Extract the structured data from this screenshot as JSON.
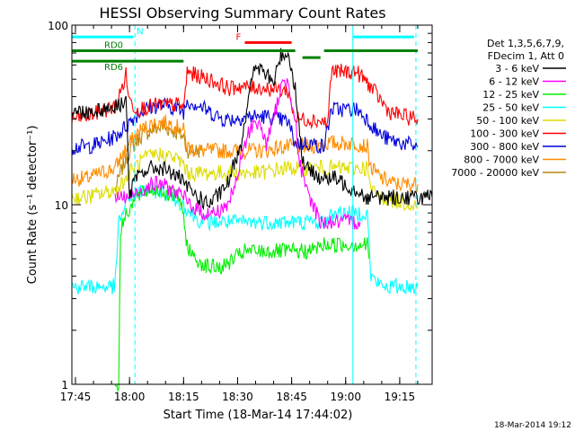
{
  "chart_data": {
    "type": "line",
    "title": "HESSI Observing Summary Count Rates",
    "xlabel": "Start Time (18-Mar-14 17:44:02)",
    "ylabel": "Count Rate (s⁻¹ detector⁻¹)",
    "x_unit": "minutes after 17:44:02",
    "xlim": [
      0,
      100
    ],
    "ylim": [
      1,
      100
    ],
    "yscale": "log",
    "grid": false,
    "legend_position": "right",
    "x_ticks": [
      {
        "label": "17:45",
        "x": 1
      },
      {
        "label": "18:00",
        "x": 16
      },
      {
        "label": "18:15",
        "x": 31
      },
      {
        "label": "18:30",
        "x": 46
      },
      {
        "label": "18:45",
        "x": 61
      },
      {
        "label": "19:00",
        "x": 76
      },
      {
        "label": "19:15",
        "x": 91
      }
    ],
    "y_ticks": [
      {
        "label": "1",
        "y": 1
      },
      {
        "label": "10",
        "y": 10
      },
      {
        "label": "100",
        "y": 100
      }
    ],
    "legend_header": [
      "Det 1,3,5,6,7,9,",
      "FDecim 1, Att 0"
    ],
    "series": [
      {
        "name": "3 - 6 keV",
        "color": "#000000",
        "points": [
          [
            0,
            33
          ],
          [
            4,
            33
          ],
          [
            8,
            34
          ],
          [
            12,
            35
          ],
          [
            14,
            37
          ],
          [
            15,
            39
          ],
          [
            16,
            11
          ],
          [
            17,
            13
          ],
          [
            19,
            15
          ],
          [
            22,
            16
          ],
          [
            25,
            16
          ],
          [
            28,
            15
          ],
          [
            30,
            14
          ],
          [
            31,
            13
          ],
          [
            33,
            12
          ],
          [
            35,
            11
          ],
          [
            38,
            10
          ],
          [
            42,
            12
          ],
          [
            44,
            14
          ],
          [
            45,
            17
          ],
          [
            47,
            22
          ],
          [
            49,
            40
          ],
          [
            51,
            60
          ],
          [
            53,
            55
          ],
          [
            56,
            48
          ],
          [
            58,
            68
          ],
          [
            60,
            70
          ],
          [
            62,
            45
          ],
          [
            63,
            28
          ],
          [
            64,
            18
          ],
          [
            65,
            16
          ],
          [
            67,
            15
          ],
          [
            70,
            14
          ],
          [
            73,
            14
          ],
          [
            76,
            13
          ],
          [
            79,
            12
          ],
          [
            80,
            12
          ],
          [
            81,
            11
          ],
          [
            84,
            11
          ],
          [
            90,
            11
          ],
          [
            100,
            11
          ]
        ]
      },
      {
        "name": "6 - 12 keV",
        "color": "#ff00ff",
        "points": [
          [
            12,
            11
          ],
          [
            16,
            11
          ],
          [
            19,
            12
          ],
          [
            22,
            13
          ],
          [
            25,
            13
          ],
          [
            28,
            12
          ],
          [
            31,
            11
          ],
          [
            33,
            10
          ],
          [
            36,
            9
          ],
          [
            40,
            9
          ],
          [
            43,
            10
          ],
          [
            45,
            12
          ],
          [
            47,
            18
          ],
          [
            49,
            25
          ],
          [
            51,
            30
          ],
          [
            53,
            25
          ],
          [
            54,
            22
          ],
          [
            56,
            30
          ],
          [
            58,
            45
          ],
          [
            60,
            50
          ],
          [
            62,
            30
          ],
          [
            63,
            18
          ],
          [
            65,
            12
          ],
          [
            67,
            10
          ],
          [
            69,
            8
          ],
          [
            72,
            8
          ],
          [
            76,
            8
          ],
          [
            80,
            8
          ]
        ]
      },
      {
        "name": "12 - 25 keV",
        "color": "#00ee00",
        "points": [
          [
            12,
            1
          ],
          [
            13,
            1
          ],
          [
            13.5,
            7
          ],
          [
            15,
            9
          ],
          [
            18,
            11
          ],
          [
            21,
            12
          ],
          [
            24,
            12
          ],
          [
            27,
            11.5
          ],
          [
            30,
            11
          ],
          [
            32,
            6
          ],
          [
            34,
            5
          ],
          [
            38,
            4.5
          ],
          [
            42,
            4.5
          ],
          [
            45,
            5
          ],
          [
            48,
            5.5
          ],
          [
            51,
            5.5
          ],
          [
            54,
            5.5
          ],
          [
            57,
            5.5
          ],
          [
            60,
            5.5
          ],
          [
            63,
            5.5
          ],
          [
            66,
            5.5
          ],
          [
            70,
            6
          ],
          [
            73,
            6
          ],
          [
            76,
            6
          ],
          [
            79,
            6
          ],
          [
            82,
            6
          ],
          [
            82.5,
            5
          ]
        ]
      },
      {
        "name": "25 - 50 keV",
        "color": "#00ffff",
        "points": [
          [
            0,
            3.5
          ],
          [
            2,
            3.5
          ],
          [
            6,
            3.5
          ],
          [
            9,
            3.5
          ],
          [
            12,
            3.5
          ],
          [
            13,
            8
          ],
          [
            16,
            11
          ],
          [
            20,
            12
          ],
          [
            24,
            12
          ],
          [
            28,
            11
          ],
          [
            31,
            10
          ],
          [
            33,
            9
          ],
          [
            36,
            8
          ],
          [
            40,
            8
          ],
          [
            44,
            8
          ],
          [
            48,
            8
          ],
          [
            52,
            8
          ],
          [
            56,
            8
          ],
          [
            60,
            8
          ],
          [
            63,
            8
          ],
          [
            66,
            8
          ],
          [
            70,
            8
          ],
          [
            73,
            9
          ],
          [
            76,
            9
          ],
          [
            79,
            9
          ],
          [
            82,
            9
          ],
          [
            83,
            4
          ],
          [
            86,
            3.5
          ],
          [
            90,
            3.5
          ],
          [
            96,
            3.5
          ]
        ]
      },
      {
        "name": "50 - 100 keV",
        "color": "#dddd00",
        "points": [
          [
            0,
            11
          ],
          [
            4,
            11
          ],
          [
            8,
            11.5
          ],
          [
            12,
            12
          ],
          [
            15,
            14
          ],
          [
            17,
            16
          ],
          [
            20,
            18
          ],
          [
            23,
            19
          ],
          [
            26,
            19
          ],
          [
            29,
            18
          ],
          [
            31,
            17
          ],
          [
            32,
            15
          ],
          [
            35,
            15
          ],
          [
            40,
            15
          ],
          [
            44,
            15
          ],
          [
            48,
            15
          ],
          [
            52,
            15
          ],
          [
            56,
            15.5
          ],
          [
            60,
            16
          ],
          [
            64,
            16
          ],
          [
            68,
            16
          ],
          [
            72,
            16
          ],
          [
            76,
            16
          ],
          [
            79,
            16
          ],
          [
            82,
            16
          ],
          [
            83,
            12
          ],
          [
            86,
            11
          ],
          [
            90,
            10.5
          ],
          [
            96,
            10
          ]
        ]
      },
      {
        "name": "100 - 300 keV",
        "color": "#ff0000",
        "points": [
          [
            0,
            30
          ],
          [
            4,
            31
          ],
          [
            8,
            33
          ],
          [
            12,
            35
          ],
          [
            14,
            45
          ],
          [
            15,
            53
          ],
          [
            16,
            38
          ],
          [
            18,
            34
          ],
          [
            21,
            35
          ],
          [
            24,
            36
          ],
          [
            27,
            36
          ],
          [
            30,
            36
          ],
          [
            31,
            34
          ],
          [
            32,
            55
          ],
          [
            35,
            52
          ],
          [
            38,
            50
          ],
          [
            42,
            46
          ],
          [
            44,
            44
          ],
          [
            46,
            46
          ],
          [
            48,
            45
          ],
          [
            52,
            45
          ],
          [
            56,
            44
          ],
          [
            60,
            43
          ],
          [
            62,
            30
          ],
          [
            66,
            30
          ],
          [
            70,
            29
          ],
          [
            71,
            28
          ],
          [
            72,
            55
          ],
          [
            76,
            55
          ],
          [
            79,
            55
          ],
          [
            82,
            48
          ],
          [
            85,
            40
          ],
          [
            88,
            33
          ],
          [
            92,
            31
          ],
          [
            96,
            30
          ]
        ]
      },
      {
        "name": "300 - 800 keV",
        "color": "#0000dd",
        "points": [
          [
            0,
            21
          ],
          [
            4,
            21
          ],
          [
            8,
            22
          ],
          [
            12,
            24
          ],
          [
            14,
            26
          ],
          [
            16,
            29
          ],
          [
            19,
            33
          ],
          [
            22,
            35
          ],
          [
            25,
            36
          ],
          [
            28,
            35
          ],
          [
            31,
            33
          ],
          [
            32,
            38
          ],
          [
            35,
            36
          ],
          [
            38,
            33
          ],
          [
            42,
            30
          ],
          [
            45,
            30
          ],
          [
            48,
            31
          ],
          [
            51,
            31
          ],
          [
            54,
            31
          ],
          [
            57,
            30
          ],
          [
            60,
            29
          ],
          [
            62,
            22
          ],
          [
            66,
            22
          ],
          [
            70,
            21
          ],
          [
            72,
            34
          ],
          [
            76,
            34
          ],
          [
            79,
            34
          ],
          [
            82,
            30
          ],
          [
            85,
            25
          ],
          [
            88,
            23
          ],
          [
            92,
            22
          ],
          [
            96,
            21
          ]
        ]
      },
      {
        "name": "800 - 7000 keV",
        "color": "#ff8c00",
        "points": [
          [
            0,
            14
          ],
          [
            4,
            14
          ],
          [
            8,
            15
          ],
          [
            12,
            16
          ],
          [
            14,
            19
          ],
          [
            16,
            22
          ],
          [
            19,
            26
          ],
          [
            22,
            28
          ],
          [
            25,
            29
          ],
          [
            28,
            28
          ],
          [
            31,
            26
          ],
          [
            32,
            21
          ],
          [
            35,
            20
          ],
          [
            38,
            20
          ],
          [
            42,
            20
          ],
          [
            46,
            20
          ],
          [
            50,
            20
          ],
          [
            54,
            20
          ],
          [
            58,
            21
          ],
          [
            62,
            21
          ],
          [
            66,
            21
          ],
          [
            70,
            22
          ],
          [
            72,
            22
          ],
          [
            76,
            22
          ],
          [
            79,
            22
          ],
          [
            82,
            21
          ],
          [
            83,
            16
          ],
          [
            86,
            14
          ],
          [
            90,
            13
          ],
          [
            96,
            13
          ]
        ]
      },
      {
        "name": "7000 - 20000 keV",
        "color": "#b8860b",
        "points": [
          [
            12,
            12
          ],
          [
            14,
            16
          ],
          [
            16,
            20
          ],
          [
            19,
            24
          ],
          [
            22,
            26
          ],
          [
            25,
            27
          ],
          [
            28,
            26
          ],
          [
            31,
            24
          ],
          [
            32,
            20
          ],
          [
            36,
            20
          ]
        ]
      }
    ],
    "annotations": [
      {
        "text": "N",
        "color": "#00ffff",
        "x": [
          0,
          17
        ],
        "y": 86
      },
      {
        "text": "",
        "color": "#00ffff",
        "x": [
          78,
          95
        ],
        "y": 86
      },
      {
        "text": "RD0",
        "color": "#008000",
        "x": [
          0,
          31
        ],
        "y": 72
      },
      {
        "text": "RD6",
        "color": "#008000",
        "x": [
          0,
          31
        ],
        "y": 63
      },
      {
        "text": "",
        "color": "#008000",
        "x": [
          31,
          62
        ],
        "y": 72
      },
      {
        "text": "",
        "color": "#008000",
        "x": [
          64,
          69
        ],
        "y": 66
      },
      {
        "text": "",
        "color": "#008000",
        "x": [
          70,
          96
        ],
        "y": 72
      },
      {
        "text": "F",
        "color": "#ff0000",
        "x": [
          48,
          61
        ],
        "y": 80
      }
    ],
    "vlines_dashed": [
      {
        "x": 17.5,
        "color": "#00ffff"
      },
      {
        "x": 95.5,
        "color": "#00ffff"
      }
    ],
    "vlines_solid": [
      {
        "x": 78,
        "color": "#00ffff"
      }
    ],
    "footer": "18-Mar-2014 19:12"
  }
}
